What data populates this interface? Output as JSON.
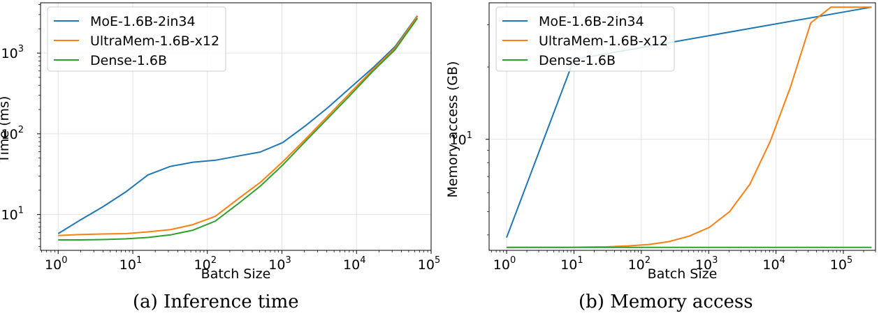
{
  "figure": {
    "captions": [
      "(a)  Inference time",
      "(b)  Memory access"
    ]
  },
  "colors": {
    "moe": "#1f77b4",
    "ultramem": "#ff7f0e",
    "dense": "#2ca02c"
  },
  "chart_data": [
    {
      "type": "line",
      "xscale": "log",
      "yscale": "log",
      "xlabel": "Batch Size",
      "ylabel": "Time (ms)",
      "xlim": [
        0.58,
        100000
      ],
      "ylim": [
        3.6,
        4200
      ],
      "xticks": [
        {
          "value": 1,
          "base": "10",
          "exp": "0"
        },
        {
          "value": 10,
          "base": "10",
          "exp": "1"
        },
        {
          "value": 100,
          "base": "10",
          "exp": "2"
        },
        {
          "value": 1000,
          "base": "10",
          "exp": "3"
        },
        {
          "value": 10000,
          "base": "10",
          "exp": "4"
        },
        {
          "value": 100000,
          "base": "10",
          "exp": "5"
        }
      ],
      "yticks": [
        {
          "value": 10,
          "base": "10",
          "exp": "1"
        },
        {
          "value": 100,
          "base": "10",
          "exp": "2"
        },
        {
          "value": 1000,
          "base": "10",
          "exp": "3"
        }
      ],
      "grid": true,
      "legend_loc": "upper-left",
      "series": [
        {
          "name": "MoE-1.6B-2in34",
          "color": "#1f77b4",
          "x": [
            1,
            2,
            4,
            8,
            16,
            32,
            64,
            128,
            256,
            512,
            1024,
            2048,
            4096,
            8192,
            16384,
            32768,
            65536
          ],
          "y": [
            5.8,
            8.6,
            12.5,
            19,
            31,
            39.5,
            44.5,
            47,
            53,
            59.5,
            78,
            125,
            210,
            370,
            650,
            1200,
            2900
          ]
        },
        {
          "name": "UltraMem-1.6B-x12",
          "color": "#ff7f0e",
          "x": [
            1,
            2,
            4,
            8,
            16,
            32,
            64,
            128,
            256,
            512,
            1024,
            2048,
            4096,
            8192,
            16384,
            32768,
            65536
          ],
          "y": [
            5.5,
            5.65,
            5.75,
            5.8,
            6.1,
            6.5,
            7.5,
            9.5,
            15.5,
            25,
            45,
            85,
            165,
            320,
            620,
            1150,
            2850
          ]
        },
        {
          "name": "Dense-1.6B",
          "color": "#2ca02c",
          "x": [
            1,
            2,
            4,
            8,
            16,
            32,
            64,
            128,
            256,
            512,
            1024,
            2048,
            4096,
            8192,
            16384,
            32768,
            65536
          ],
          "y": [
            4.85,
            4.85,
            4.9,
            5,
            5.2,
            5.6,
            6.4,
            8.3,
            13.5,
            22.5,
            41,
            80,
            155,
            300,
            590,
            1100,
            2700
          ]
        }
      ]
    },
    {
      "type": "line",
      "xscale": "log",
      "yscale": "log",
      "xlabel": "Batch Size",
      "ylabel": "Memory access (GB)",
      "xlim": [
        0.55,
        300000
      ],
      "ylim": [
        3.45,
        37.0
      ],
      "xticks": [
        {
          "value": 1,
          "base": "10",
          "exp": "0"
        },
        {
          "value": 10,
          "base": "10",
          "exp": "1"
        },
        {
          "value": 100,
          "base": "10",
          "exp": "2"
        },
        {
          "value": 1000,
          "base": "10",
          "exp": "3"
        },
        {
          "value": 10000,
          "base": "10",
          "exp": "4"
        },
        {
          "value": 100000,
          "base": "10",
          "exp": "5"
        }
      ],
      "yticks": [
        {
          "value": 10,
          "base": "10",
          "exp": "1"
        }
      ],
      "grid": true,
      "legend_loc": "upper-left",
      "series": [
        {
          "name": "MoE-1.6B-2in34",
          "color": "#1f77b4",
          "x": [
            1,
            10,
            262144
          ],
          "y": [
            3.9,
            21.5,
            35.5
          ]
        },
        {
          "name": "UltraMem-1.6B-x12",
          "color": "#ff7f0e",
          "x": [
            1,
            8,
            16,
            32,
            64,
            128,
            256,
            512,
            1024,
            2048,
            4096,
            8192,
            16384,
            32768,
            65536,
            262144
          ],
          "y": [
            3.55,
            3.55,
            3.56,
            3.57,
            3.6,
            3.65,
            3.75,
            3.95,
            4.3,
            5.0,
            6.5,
            9.8,
            16.5,
            30.5,
            35.5,
            35.5
          ]
        },
        {
          "name": "Dense-1.6B",
          "color": "#2ca02c",
          "x": [
            1,
            262144
          ],
          "y": [
            3.55,
            3.55
          ]
        }
      ]
    }
  ]
}
